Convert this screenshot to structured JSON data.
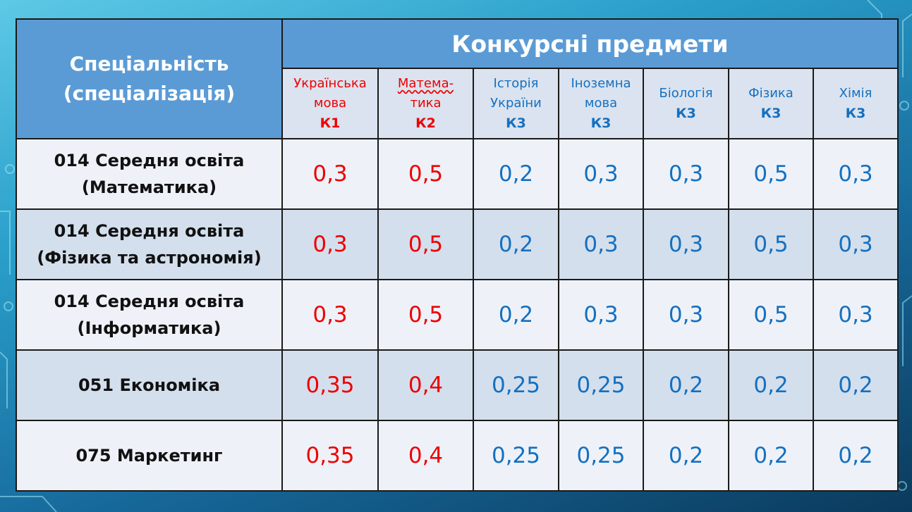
{
  "header": {
    "spec_line1": "Спеціальність",
    "spec_line2": "(спеціалізація)",
    "group_title": "Конкурсні предмети"
  },
  "subjects": [
    {
      "name_line1": "Українська",
      "name_line2": "мова",
      "code": "К1",
      "color": "#ee0000"
    },
    {
      "name_line1": "Матема-",
      "name_line2": "тика",
      "code": "К2",
      "color": "#ee0000"
    },
    {
      "name_line1": "Історія",
      "name_line2": "України",
      "code": "К3",
      "color": "#1570c0"
    },
    {
      "name_line1": "Іноземна",
      "name_line2": "мова",
      "code": "К3",
      "color": "#1570c0"
    },
    {
      "name_line1": "Біологія",
      "name_line2": "",
      "code": "К3",
      "color": "#1570c0"
    },
    {
      "name_line1": "Фізика",
      "name_line2": "",
      "code": "К3",
      "color": "#1570c0"
    },
    {
      "name_line1": "Хімія",
      "name_line2": "",
      "code": "К3",
      "color": "#1570c0"
    }
  ],
  "rows": [
    {
      "line1": "014 Середня освіта",
      "line2": "(Математика)",
      "values": [
        "0,3",
        "0,5",
        "0,2",
        "0,3",
        "0,3",
        "0,5",
        "0,3"
      ]
    },
    {
      "line1": "014 Середня освіта",
      "line2": "(Фізика та астрономія)",
      "values": [
        "0,3",
        "0,5",
        "0,2",
        "0,3",
        "0,3",
        "0,5",
        "0,3"
      ]
    },
    {
      "line1": "014 Середня освіта",
      "line2": "(Інформатика)",
      "values": [
        "0,3",
        "0,5",
        "0,2",
        "0,3",
        "0,3",
        "0,5",
        "0,3"
      ]
    },
    {
      "line1": "051 Економіка",
      "line2": "",
      "values": [
        "0,35",
        "0,4",
        "0,25",
        "0,25",
        "0,2",
        "0,2",
        "0,2"
      ]
    },
    {
      "line1": "075 Маркетинг",
      "line2": "",
      "values": [
        "0,35",
        "0,4",
        "0,25",
        "0,25",
        "0,2",
        "0,2",
        "0,2"
      ]
    }
  ]
}
